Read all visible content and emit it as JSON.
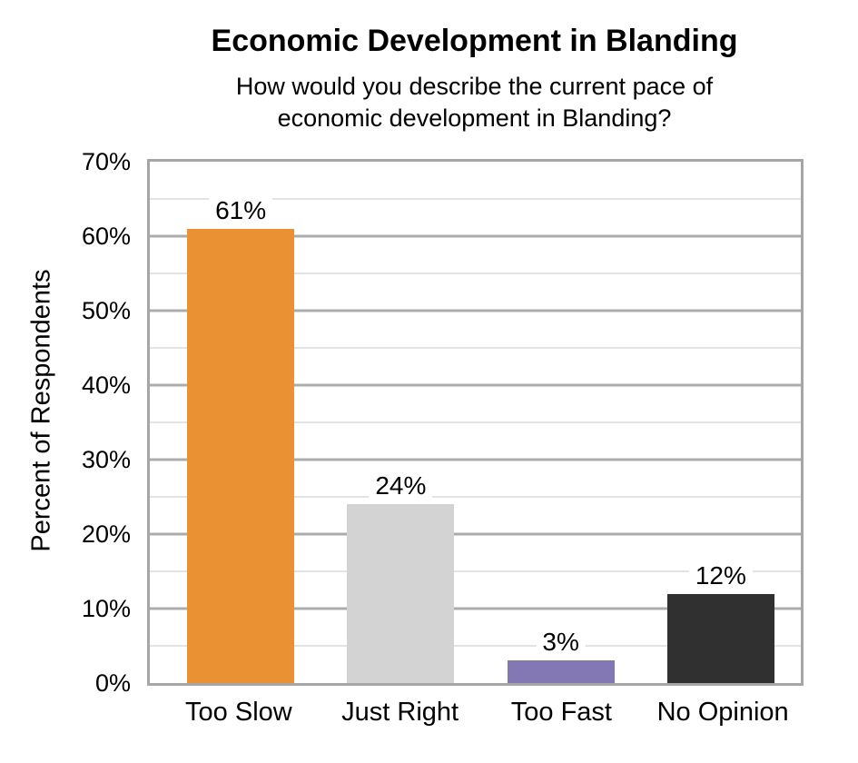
{
  "chart_data": {
    "type": "bar",
    "title": "Economic Development in Blanding",
    "subtitle_lines": [
      "How would you describe the current pace of",
      "economic development in Blanding?"
    ],
    "categories": [
      "Too Slow",
      "Just Right",
      "Too Fast",
      "No Opinion"
    ],
    "values": [
      61,
      24,
      3,
      12
    ],
    "value_labels": [
      "61%",
      "24%",
      "3%",
      "12%"
    ],
    "bar_colors": [
      "#E99133",
      "#D3D3D3",
      "#8478B4",
      "#303030"
    ],
    "ylabel": "Percent of Respondents",
    "xlabel": "",
    "ylim": [
      0,
      70
    ],
    "y_major_step": 10,
    "y_minor_step": 5,
    "y_tick_labels": [
      "0%",
      "10%",
      "20%",
      "30%",
      "40%",
      "50%",
      "60%",
      "70%"
    ],
    "grid": "on",
    "legend": "none",
    "colors": {
      "plot_border": "#A6A6A6",
      "gridline_major": "#ACACAC",
      "gridline_minor": "#E3E3E3",
      "text": "#000000",
      "background": "#FFFFFF"
    }
  }
}
